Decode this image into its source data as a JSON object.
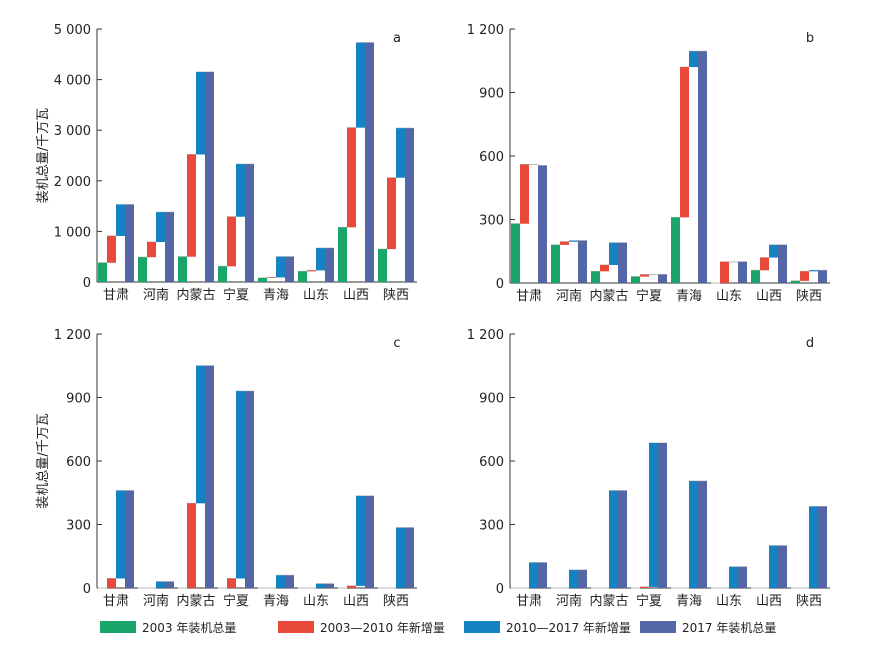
{
  "figure": {
    "ylabel": "装机总量/千万瓦",
    "colors": {
      "2003": "#1aa56a",
      "inc0310": "#e8493a",
      "inc1017": "#1582c4",
      "2017": "#5566a6"
    }
  },
  "legend": [
    {
      "key": "2003",
      "label": "2003 年装机总量"
    },
    {
      "key": "inc0310",
      "label": "2003—2010 年新增量"
    },
    {
      "key": "inc1017",
      "label": "2010—2017 年新增量"
    },
    {
      "key": "2017",
      "label": "2017 年装机总量"
    }
  ],
  "chart_data": [
    {
      "type": "bar",
      "panel": "a",
      "ylabel": "装机总量/千万瓦",
      "ylim": [
        0,
        5000
      ],
      "yticks": [
        "0",
        "1 000",
        "2 000",
        "3 000",
        "4 000",
        "5 000"
      ],
      "ytick_values": [
        0,
        1000,
        2000,
        3000,
        4000,
        5000
      ],
      "categories": [
        "甘肃",
        "河南",
        "内蒙古",
        "宁夏",
        "青海",
        "山东",
        "山西",
        "陕西"
      ],
      "series": [
        {
          "name": "2003 年装机总量",
          "values": [
            380,
            490,
            500,
            310,
            80,
            210,
            1080,
            650
          ]
        },
        {
          "name": "2003—2010 年新增量",
          "values": [
            530,
            300,
            2020,
            980,
            10,
            20,
            1970,
            1410
          ]
        },
        {
          "name": "2010—2017 年新增量",
          "values": [
            620,
            590,
            1630,
            1040,
            410,
            440,
            1680,
            980
          ]
        },
        {
          "name": "2017 年装机总量",
          "values": [
            1530,
            1380,
            4150,
            2330,
            500,
            670,
            4730,
            3040
          ]
        }
      ]
    },
    {
      "type": "bar",
      "panel": "b",
      "ylabel": "",
      "ylim": [
        0,
        1200
      ],
      "yticks": [
        "0",
        "300",
        "600",
        "900",
        "1 200"
      ],
      "ytick_values": [
        0,
        300,
        600,
        900,
        1200
      ],
      "categories": [
        "甘肃",
        "河南",
        "内蒙古",
        "宁夏",
        "青海",
        "山东",
        "山西",
        "陕西"
      ],
      "series": [
        {
          "name": "2003 年装机总量",
          "values": [
            280,
            180,
            55,
            30,
            310,
            0,
            60,
            10
          ]
        },
        {
          "name": "2003—2010 年新增量",
          "values": [
            280,
            15,
            30,
            10,
            710,
            100,
            60,
            45
          ]
        },
        {
          "name": "2010—2017 年新增量",
          "values": [
            0,
            5,
            105,
            0,
            75,
            0,
            60,
            5
          ]
        },
        {
          "name": "2017 年装机总量",
          "values": [
            555,
            200,
            190,
            40,
            1095,
            100,
            180,
            60
          ]
        }
      ]
    },
    {
      "type": "bar",
      "panel": "c",
      "ylabel": "装机总量/千万瓦",
      "ylim": [
        0,
        1200
      ],
      "yticks": [
        "0",
        "300",
        "600",
        "900",
        "1 200"
      ],
      "ytick_values": [
        0,
        300,
        600,
        900,
        1200
      ],
      "categories": [
        "甘肃",
        "河南",
        "内蒙古",
        "宁夏",
        "青海",
        "山东",
        "山西",
        "陕西"
      ],
      "series": [
        {
          "name": "2003 年装机总量",
          "values": [
            0,
            0,
            0,
            0,
            0,
            0,
            0,
            0
          ]
        },
        {
          "name": "2003—2010 年新增量",
          "values": [
            45,
            0,
            400,
            45,
            0,
            0,
            10,
            0
          ]
        },
        {
          "name": "2010—2017 年新增量",
          "values": [
            415,
            30,
            650,
            885,
            60,
            20,
            425,
            285
          ]
        },
        {
          "name": "2017 年装机总量",
          "values": [
            460,
            30,
            1050,
            930,
            60,
            20,
            435,
            285
          ]
        }
      ]
    },
    {
      "type": "bar",
      "panel": "d",
      "ylabel": "",
      "ylim": [
        0,
        1200
      ],
      "yticks": [
        "0",
        "300",
        "600",
        "900",
        "1 200"
      ],
      "ytick_values": [
        0,
        300,
        600,
        900,
        1200
      ],
      "categories": [
        "甘肃",
        "河南",
        "内蒙古",
        "宁夏",
        "青海",
        "山东",
        "山西",
        "陕西"
      ],
      "series": [
        {
          "name": "2003 年装机总量",
          "values": [
            0,
            0,
            0,
            0,
            0,
            0,
            0,
            0
          ]
        },
        {
          "name": "2003—2010 年新增量",
          "values": [
            0,
            0,
            0,
            5,
            0,
            0,
            0,
            0
          ]
        },
        {
          "name": "2010—2017 年新增量",
          "values": [
            120,
            85,
            460,
            680,
            505,
            100,
            200,
            385
          ]
        },
        {
          "name": "2017 年装机总量",
          "values": [
            120,
            85,
            460,
            685,
            505,
            100,
            200,
            385
          ]
        }
      ]
    }
  ]
}
